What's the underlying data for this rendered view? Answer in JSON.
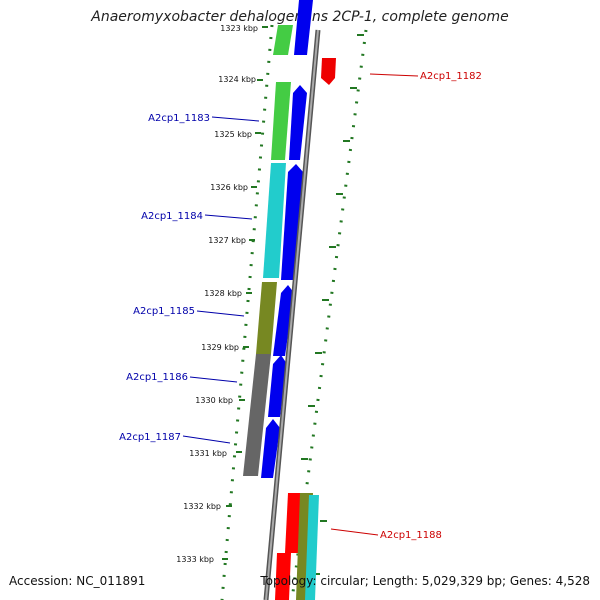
{
  "title": "Anaeromyxobacter dehalogenans 2CP-1, complete genome",
  "footer": {
    "accession": "Accession: NC_011891",
    "topology": "Topology: circular; Length: 5,029,329 bp; Genes: 4,528"
  },
  "kbp_labels": [
    "1323 kbp",
    "1324 kbp",
    "1325 kbp",
    "1326 kbp",
    "1327 kbp",
    "1328 kbp",
    "1329 kbp",
    "1330 kbp",
    "1331 kbp",
    "1332 kbp",
    "1333 kbp"
  ],
  "genes": [
    {
      "name": "A2cp1_1182",
      "color": "#cc0000",
      "strand": "reverse"
    },
    {
      "name": "A2cp1_1183",
      "color": "#0000aa",
      "strand": "forward"
    },
    {
      "name": "A2cp1_1184",
      "color": "#0000aa",
      "strand": "forward"
    },
    {
      "name": "A2cp1_1185",
      "color": "#0000aa",
      "strand": "forward"
    },
    {
      "name": "A2cp1_1186",
      "color": "#0000aa",
      "strand": "forward"
    },
    {
      "name": "A2cp1_1187",
      "color": "#0000aa",
      "strand": "forward"
    },
    {
      "name": "A2cp1_1188",
      "color": "#cc0000",
      "strand": "reverse"
    }
  ],
  "colors": {
    "forward_cds": "#0000ee",
    "reverse_cds": "#ee0000",
    "backbone": "#888888",
    "tick_marks": "#227722",
    "cog_green": "#44cc44",
    "cog_cyan": "#22cccc",
    "cog_olive": "#778822",
    "cog_gray": "#666666"
  }
}
